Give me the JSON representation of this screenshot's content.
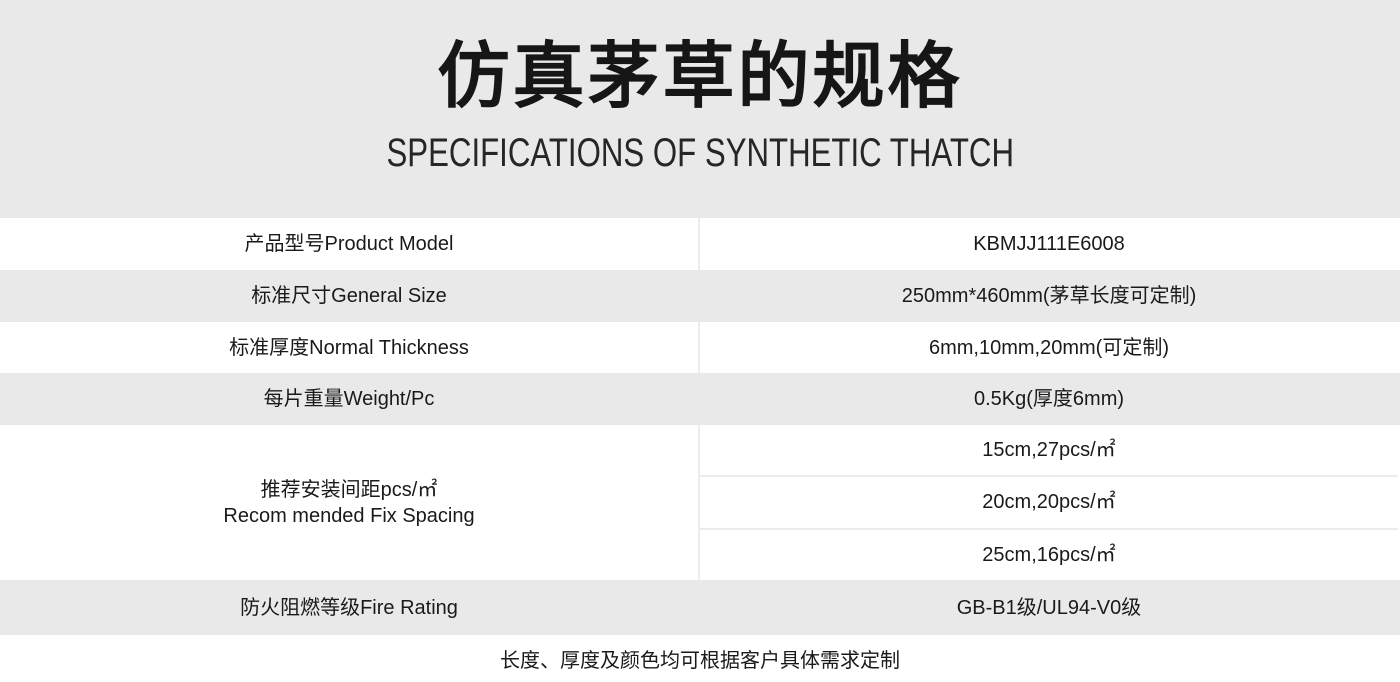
{
  "page": {
    "title": "仿真茅草的规格",
    "subtitle": "SPECIFICATIONS OF SYNTHETIC THATCH",
    "footer_note": "长度、厚度及颜色均可根据客户具体需求定制"
  },
  "table": {
    "rows": [
      {
        "label": "产品型号Product Model",
        "value": "KBMJJ111E6008"
      },
      {
        "label": "标准尺寸General Size",
        "value": "250mm*460mm(茅草长度可定制)"
      },
      {
        "label": "标准厚度Normal Thickness",
        "value": "6mm,10mm,20mm(可定制)"
      },
      {
        "label": "每片重量Weight/Pc",
        "value": "0.5Kg(厚度6mm)"
      },
      {
        "label_line1": "推荐安装间距pcs/㎡",
        "label_line2": "Recom mended Fix Spacing",
        "values": [
          "15cm,27pcs/㎡",
          "20cm,20pcs/㎡",
          "25cm,16pcs/㎡"
        ]
      },
      {
        "label": "防火阻燃等级Fire Rating",
        "value": "GB-B1级/UL94-V0级"
      }
    ]
  },
  "colors": {
    "banner_bg": "#e9e9e9",
    "row_alt_bg": "#e9e9e9",
    "divider": "#ececec",
    "text": "#1a1a1a"
  }
}
